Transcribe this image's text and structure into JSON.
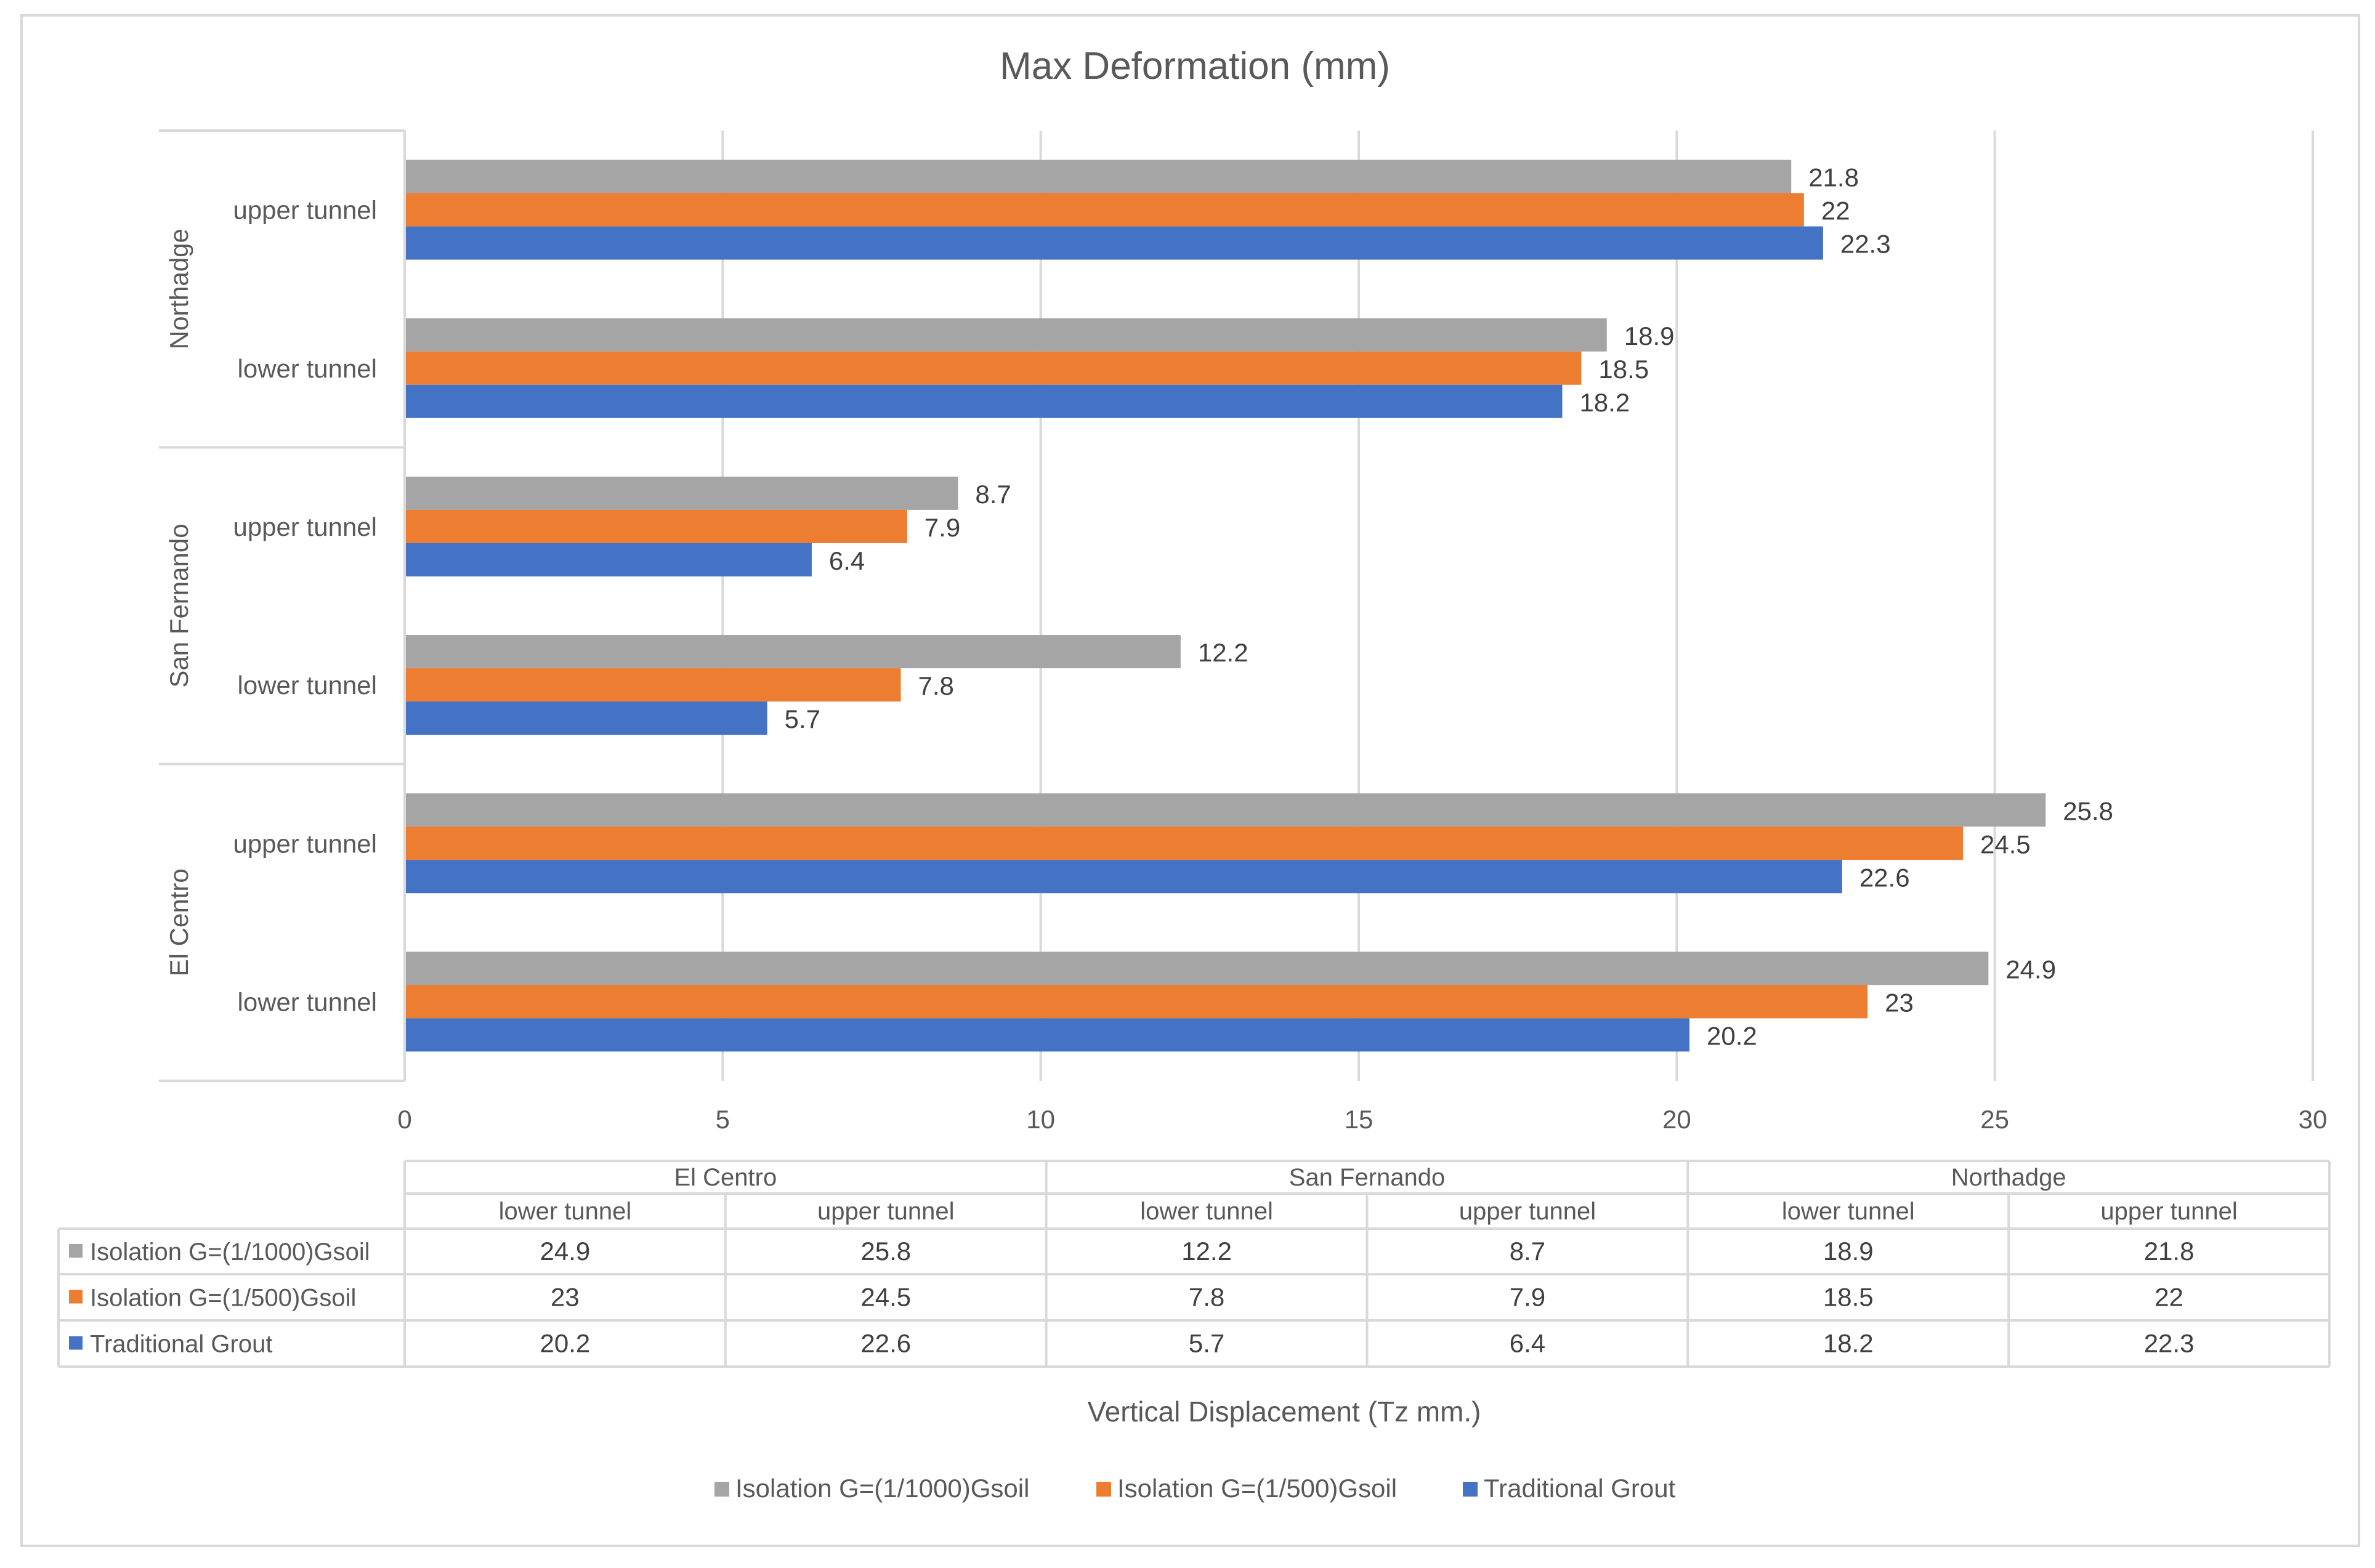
{
  "chart_data": {
    "type": "bar",
    "orientation": "horizontal",
    "title": "Max Deformation (mm)",
    "xlabel": "Vertical Displacement (Tz  mm.)",
    "ylabel": "",
    "xlim": [
      0,
      30
    ],
    "x_ticks": [
      0,
      5,
      10,
      15,
      20,
      25,
      30
    ],
    "grid": true,
    "legend_position": "bottom",
    "groups": [
      {
        "name": "El Centro",
        "categories": [
          "lower tunnel",
          "upper tunnel"
        ]
      },
      {
        "name": "San Fernando",
        "categories": [
          "lower tunnel",
          "upper tunnel"
        ]
      },
      {
        "name": "Northadge",
        "categories": [
          "lower tunnel",
          "upper tunnel"
        ]
      }
    ],
    "categories": [
      "El Centro - lower tunnel",
      "El Centro - upper tunnel",
      "San Fernando - lower tunnel",
      "San Fernando - upper tunnel",
      "Northadge - lower tunnel",
      "Northadge - upper tunnel"
    ],
    "series": [
      {
        "name": "Isolation  G=(1/1000)Gsoil",
        "color": "#a5a5a5",
        "values": [
          24.9,
          25.8,
          12.2,
          8.7,
          18.9,
          21.8
        ]
      },
      {
        "name": "Isolation  G=(1/500)Gsoil",
        "color": "#ed7d31",
        "values": [
          23,
          24.5,
          7.8,
          7.9,
          18.5,
          22
        ]
      },
      {
        "name": "Traditional Grout",
        "color": "#4472c4",
        "values": [
          20.2,
          22.6,
          5.7,
          6.4,
          18.2,
          22.3
        ]
      }
    ],
    "data_table": {
      "rows": [
        {
          "label": "Isolation  G=(1/1000)Gsoil",
          "values": [
            "24.9",
            "25.8",
            "12.2",
            "8.7",
            "18.9",
            "21.8"
          ]
        },
        {
          "label": "Isolation  G=(1/500)Gsoil",
          "values": [
            "23",
            "24.5",
            "7.8",
            "7.9",
            "18.5",
            "22"
          ]
        },
        {
          "label": "Traditional Grout",
          "values": [
            "20.2",
            "22.6",
            "5.7",
            "6.4",
            "18.2",
            "22.3"
          ]
        }
      ]
    }
  }
}
